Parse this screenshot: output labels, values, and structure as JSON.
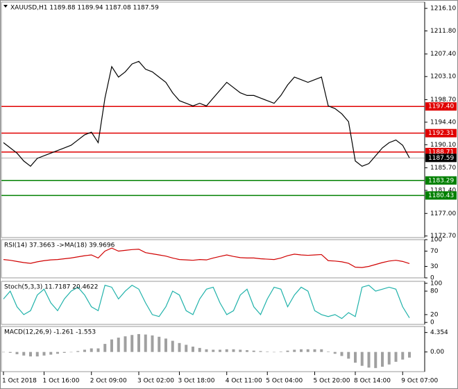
{
  "chart_data": [
    {
      "type": "line",
      "title": "XAUUSD,H1 1189.88 1189.94 1187.08 1187.59",
      "categories": [
        "1 Oct 2018",
        null,
        null,
        null,
        null,
        null,
        "1 Oct 16:00",
        null,
        null,
        null,
        null,
        null,
        null,
        "2 Oct 09:00",
        null,
        null,
        null,
        null,
        null,
        null,
        "3 Oct 02:00",
        null,
        null,
        null,
        null,
        null,
        "3 Oct 18:00",
        null,
        null,
        null,
        null,
        null,
        null,
        "4 Oct 11:00",
        null,
        null,
        null,
        null,
        null,
        "5 Oct 04:00",
        null,
        null,
        null,
        null,
        null,
        null,
        "5 Oct 20:00",
        null,
        null,
        null,
        null,
        null,
        "8 Oct 14:00",
        null,
        null,
        null,
        null,
        null,
        null,
        "9 Oct 07:00",
        null
      ],
      "series": [
        {
          "color": "#000000",
          "values": [
            1190.5,
            1189.5,
            1188.5,
            1187,
            1186,
            1187.5,
            1188,
            1188.5,
            1189,
            1189.5,
            1190,
            1191,
            1192,
            1192.5,
            1190.5,
            1199,
            1205,
            1203,
            1204,
            1205.5,
            1206,
            1204.5,
            1204,
            1203,
            1202,
            1200,
            1198.5,
            1198,
            1197.5,
            1198,
            1197.5,
            1199,
            1200.5,
            1202,
            1201,
            1200,
            1199.5,
            1199.5,
            1199,
            1198.5,
            1198,
            1199.5,
            1201.5,
            1203,
            1202.5,
            1202,
            1202.5,
            1203,
            1197.5,
            1197,
            1196,
            1194.5,
            1187,
            1186,
            1186.5,
            1188,
            1189.5,
            1190.5,
            1191,
            1190,
            1187.59
          ]
        }
      ],
      "levels": [
        {
          "value": 1197.4,
          "label": "1197.40",
          "color": "#e00000"
        },
        {
          "value": 1192.31,
          "label": "1192.31",
          "color": "#e00000"
        },
        {
          "value": 1188.71,
          "label": "1188.71",
          "color": "#e00000"
        },
        {
          "value": 1187.59,
          "label": "1187.59",
          "color": "#000000"
        },
        {
          "value": 1183.29,
          "label": "1183.29",
          "color": "#008000"
        },
        {
          "value": 1180.43,
          "label": "1180.43",
          "color": "#008000"
        }
      ],
      "ylim": [
        1172.4,
        1217.3
      ],
      "yticks": [
        {
          "value": 1216.1,
          "label": "1216.10"
        },
        {
          "value": 1211.8,
          "label": "1211.80"
        },
        {
          "value": 1207.4,
          "label": "1207.40"
        },
        {
          "value": 1203.1,
          "label": "1203.10"
        },
        {
          "value": 1198.7,
          "label": "1198.70"
        },
        {
          "value": 1194.4,
          "label": "1194.40"
        },
        {
          "value": 1190.1,
          "label": "1190.10"
        },
        {
          "value": 1185.7,
          "label": "1185.70"
        },
        {
          "value": 1181.4,
          "label": "1181.40"
        },
        {
          "value": 1177.0,
          "label": "1177.00"
        },
        {
          "value": 1172.7,
          "label": "1172.70"
        }
      ]
    },
    {
      "type": "line",
      "title": "RSI(14) 37.3663 ->MA(18) 39.9696",
      "series": [
        {
          "color": "#d00000",
          "values": [
            48,
            46,
            43,
            40,
            38,
            42,
            45,
            47,
            48,
            50,
            52,
            55,
            58,
            60,
            52,
            70,
            78,
            70,
            72,
            74,
            75,
            66,
            63,
            60,
            57,
            52,
            48,
            47,
            46,
            48,
            47,
            52,
            56,
            60,
            56,
            53,
            52,
            52,
            50,
            49,
            48,
            52,
            58,
            62,
            60,
            59,
            60,
            61,
            45,
            44,
            42,
            38,
            28,
            27,
            30,
            35,
            40,
            44,
            46,
            43,
            37.3663
          ]
        }
      ],
      "ylim": [
        0,
        100
      ],
      "yticks": [
        100,
        70,
        30,
        0
      ]
    },
    {
      "type": "line",
      "title": "Stoch(5,3,3) 11.7187 20.4622",
      "series": [
        {
          "color": "#20b2aa",
          "values": [
            60,
            80,
            40,
            20,
            30,
            70,
            85,
            50,
            30,
            60,
            80,
            90,
            70,
            40,
            30,
            95,
            90,
            60,
            80,
            95,
            85,
            50,
            20,
            15,
            40,
            80,
            70,
            30,
            20,
            60,
            85,
            90,
            50,
            20,
            30,
            70,
            85,
            40,
            20,
            60,
            90,
            85,
            40,
            70,
            90,
            80,
            30,
            20,
            15,
            20,
            10,
            25,
            15,
            90,
            95,
            80,
            85,
            90,
            85,
            40,
            11.7187
          ]
        }
      ],
      "ylim": [
        -5,
        105
      ],
      "yticks": [
        100,
        80,
        20,
        0
      ]
    },
    {
      "type": "bar",
      "title": "MACD(12,26,9) -1.261 -1.553",
      "series": [
        {
          "color": "#a0a0a0",
          "values": [
            0,
            -0.2,
            -0.5,
            -0.8,
            -1,
            -1,
            -0.8,
            -0.6,
            -0.4,
            -0.2,
            0,
            0.2,
            0.5,
            0.8,
            0.8,
            1.8,
            2.8,
            3.2,
            3.5,
            3.8,
            4,
            3.9,
            3.7,
            3.4,
            3,
            2.5,
            2,
            1.6,
            1.2,
            0.9,
            0.6,
            0.5,
            0.5,
            0.6,
            0.6,
            0.5,
            0.4,
            0.3,
            0.2,
            0.1,
            0,
            0.1,
            0.3,
            0.5,
            0.6,
            0.6,
            0.6,
            0.6,
            0.1,
            -0.4,
            -0.9,
            -1.5,
            -2.4,
            -3.1,
            -3.5,
            -3.6,
            -3.3,
            -2.8,
            -2.2,
            -1.7,
            -1.261
          ]
        }
      ],
      "ylim": [
        -4.4,
        5.7
      ],
      "yticks": [
        4.354,
        {
          "value": 0,
          "label": "0.00"
        }
      ]
    }
  ]
}
